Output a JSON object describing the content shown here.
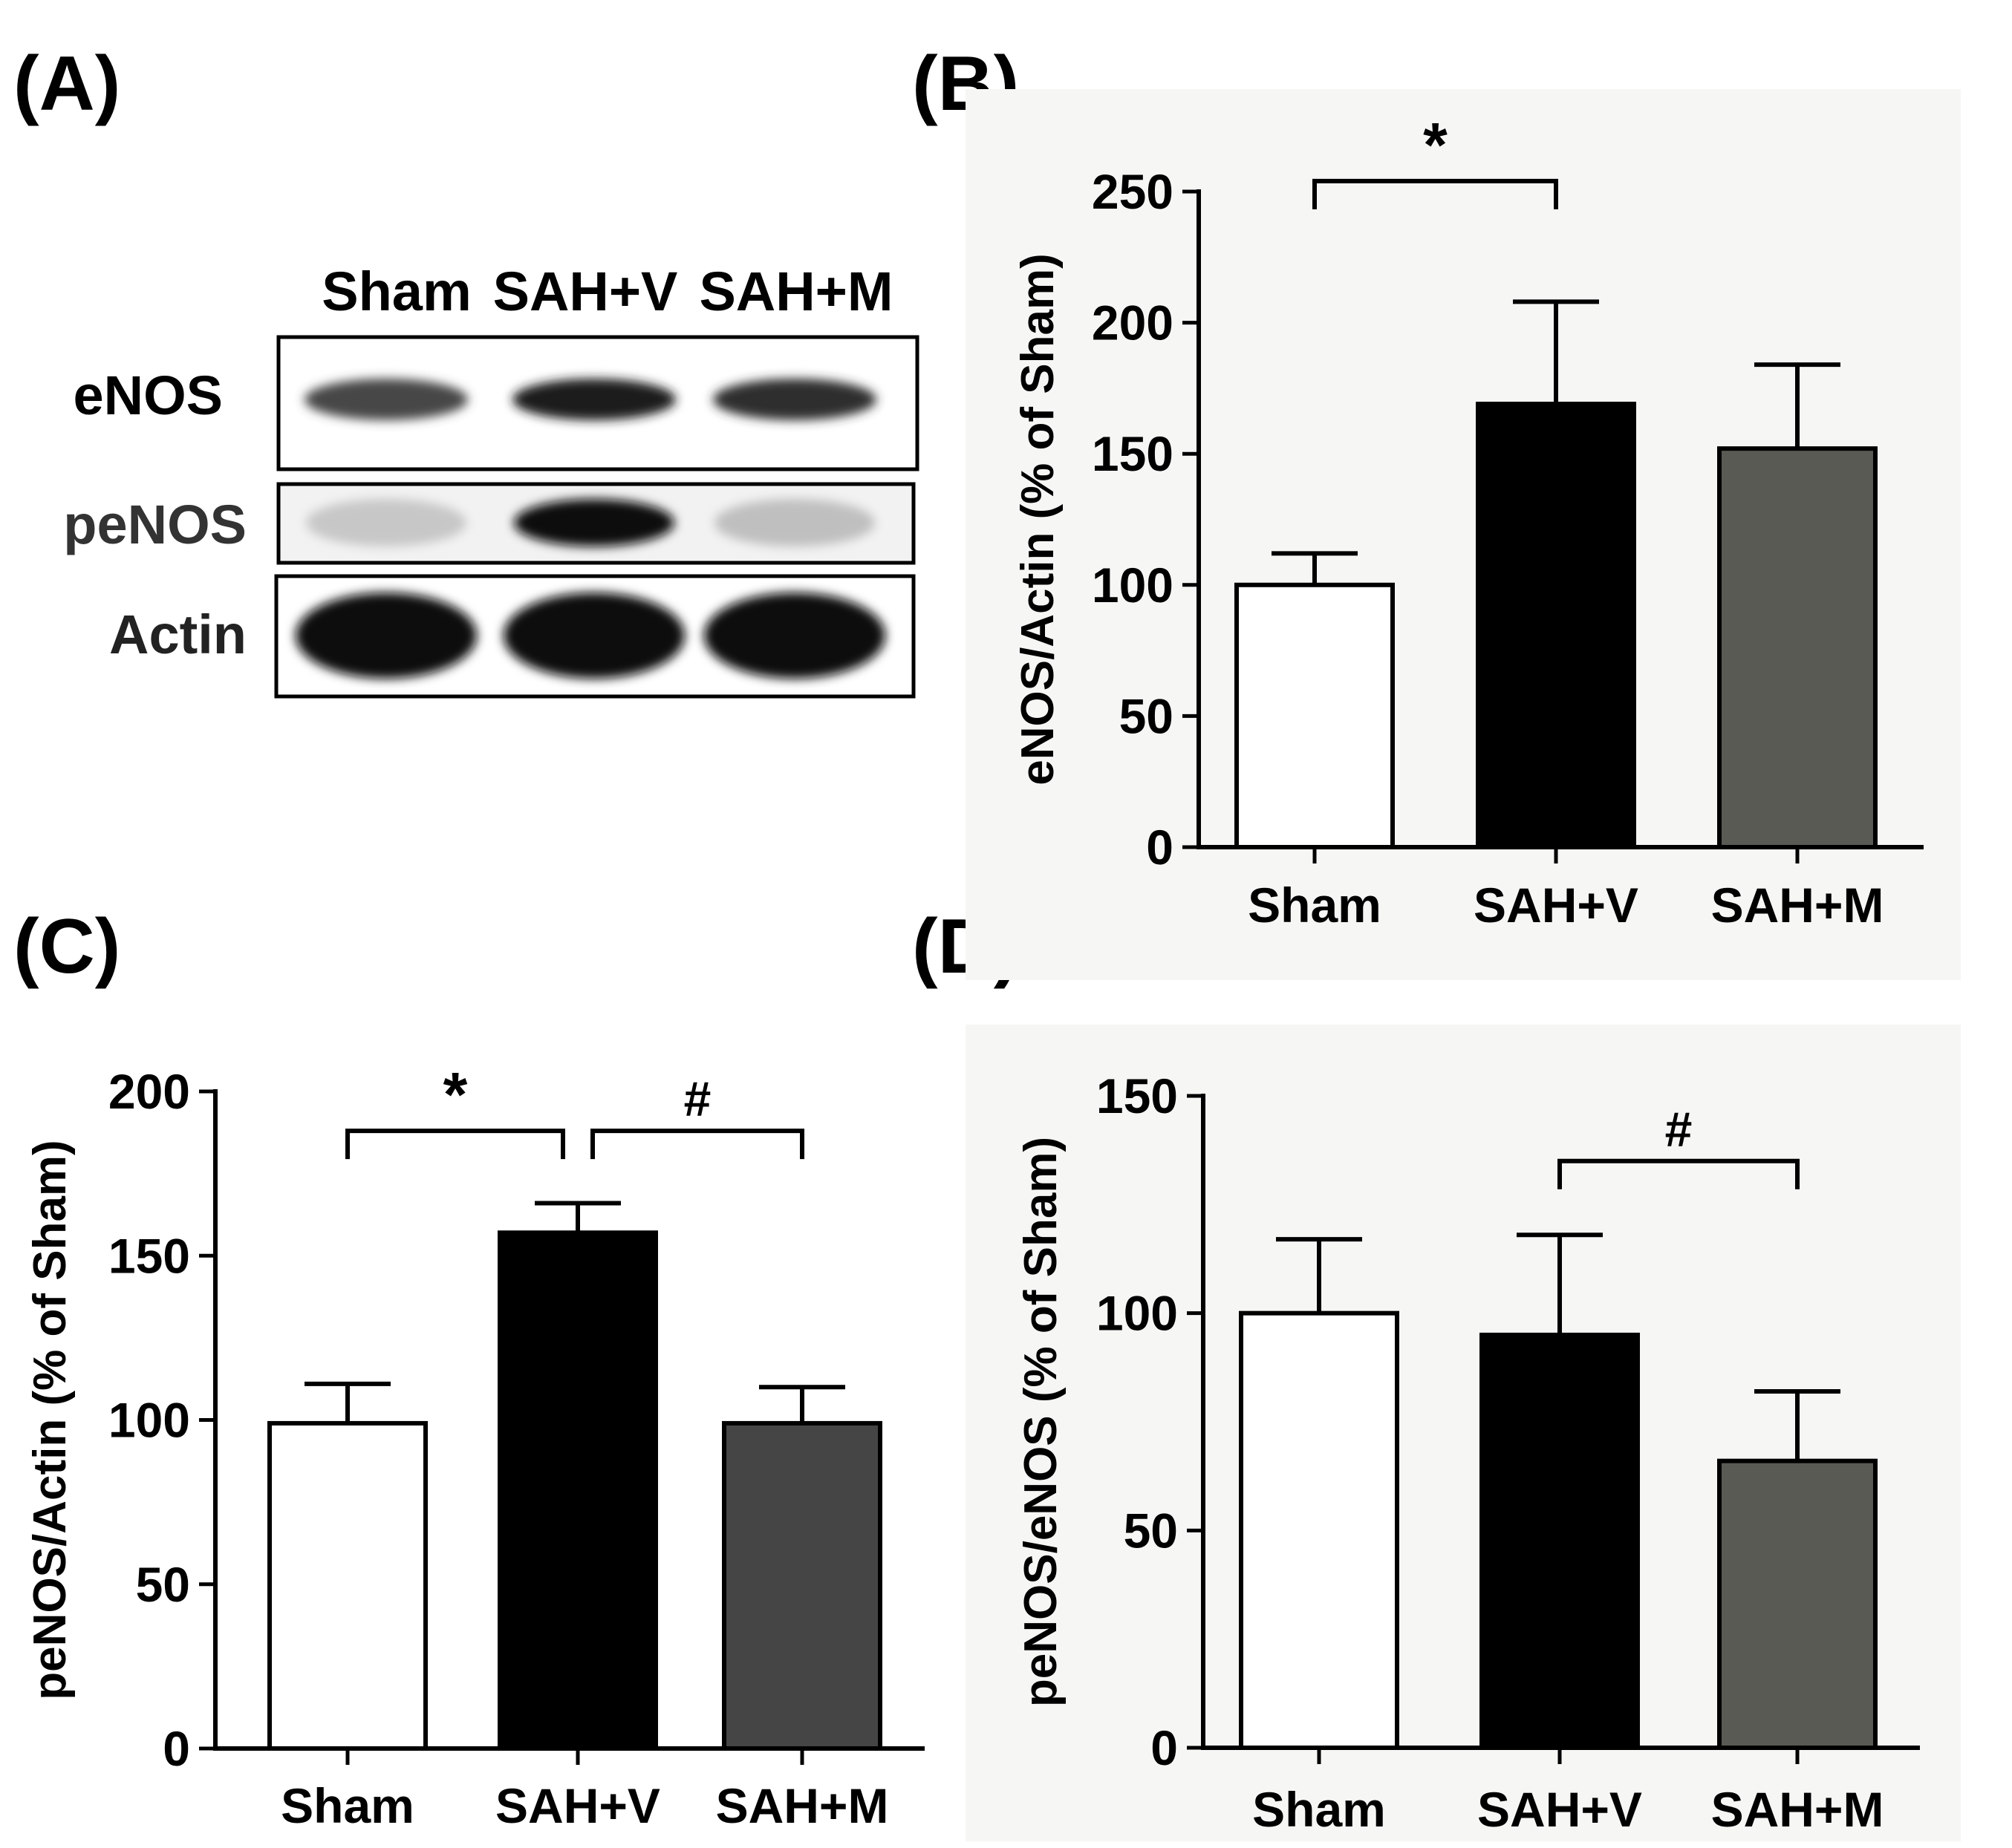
{
  "panel_labels": [
    "(A)",
    "(B)",
    "(C)",
    "(D)"
  ],
  "blot": {
    "lanes": [
      "Sham",
      "SAH+V",
      "SAH+M"
    ],
    "rows": [
      {
        "label": "eNOS",
        "intensity": [
          0.72,
          0.88,
          0.82
        ]
      },
      {
        "label": "peNOS",
        "intensity": [
          0.22,
          0.95,
          0.25
        ]
      },
      {
        "label": "Actin",
        "intensity": [
          0.97,
          0.97,
          0.97
        ]
      }
    ]
  },
  "chart_data": [
    {
      "panel": "(B)",
      "type": "bar",
      "categories": [
        "Sham",
        "SAH+V",
        "SAH+M"
      ],
      "values": [
        100,
        169,
        152
      ],
      "errors": [
        12,
        39,
        32
      ],
      "colors": [
        "#ffffff",
        "#000000",
        "#5a5a55"
      ],
      "ylabel": "eNOS/Actin (% of Sham)",
      "ylim": [
        0,
        250
      ],
      "yticks": [
        0,
        50,
        100,
        150,
        200,
        250
      ],
      "background": "#f6f6f4",
      "significance": [
        {
          "from": 0,
          "to": 1,
          "symbol": "*",
          "level": 254
        }
      ]
    },
    {
      "panel": "(C)",
      "type": "bar",
      "categories": [
        "Sham",
        "SAH+V",
        "SAH+M"
      ],
      "values": [
        99,
        157,
        99
      ],
      "errors": [
        12,
        9,
        11
      ],
      "colors": [
        "#ffffff",
        "#000000",
        "#454545"
      ],
      "ylabel": "peNOS/Actin (% of Sham)",
      "ylim": [
        0,
        200
      ],
      "yticks": [
        0,
        50,
        100,
        150,
        200
      ],
      "background": "#ffffff",
      "significance": [
        {
          "from": 0,
          "to": 1,
          "symbol": "*",
          "level": 188
        },
        {
          "from": 1,
          "to": 2,
          "symbol": "#",
          "level": 188
        }
      ]
    },
    {
      "panel": "(D)",
      "type": "bar",
      "categories": [
        "Sham",
        "SAH+V",
        "SAH+M"
      ],
      "values": [
        100,
        95,
        66
      ],
      "errors": [
        17,
        23,
        16
      ],
      "colors": [
        "#ffffff",
        "#000000",
        "#5a5a55"
      ],
      "ylabel": "peNOS/eNOS (% of Sham)",
      "ylim": [
        0,
        150
      ],
      "yticks": [
        0,
        50,
        100,
        150
      ],
      "background": "#f6f6f4",
      "significance": [
        {
          "from": 1,
          "to": 2,
          "symbol": "#",
          "level": 135
        }
      ]
    }
  ]
}
